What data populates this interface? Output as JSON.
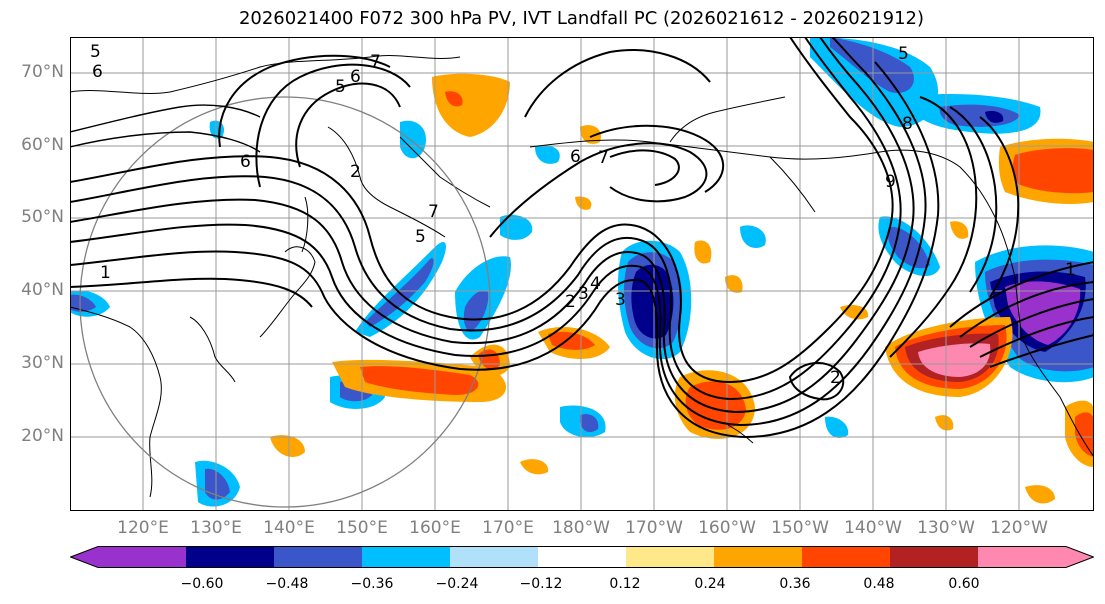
{
  "title": "2026021400 F072 300 hPa PV, IVT Landfall PC (2026021612 - 2026021912)",
  "lat_labels": [
    "70°N",
    "60°N",
    "50°N",
    "40°N",
    "30°N",
    "20°N"
  ],
  "lon_labels": [
    "120°E",
    "130°E",
    "140°E",
    "150°E",
    "160°E",
    "170°E",
    "180°W",
    "170°W",
    "160°W",
    "150°W",
    "140°W",
    "130°W",
    "120°W"
  ],
  "contour_labels": [
    "1",
    "2",
    "3",
    "4",
    "5",
    "6",
    "7",
    "8",
    "9"
  ],
  "colorbar": {
    "colors": [
      "#9932cc",
      "#00008b",
      "#3a56c8",
      "#00bfff",
      "#b0e0fa",
      "#ffffff",
      "#ffe88a",
      "#ffa500",
      "#ff4500",
      "#b22222",
      "#ff88b0"
    ],
    "ticks": [
      "−0.60",
      "−0.48",
      "−0.36",
      "−0.24",
      "−0.12",
      "0.12",
      "0.24",
      "0.36",
      "0.48",
      "0.60"
    ]
  }
}
